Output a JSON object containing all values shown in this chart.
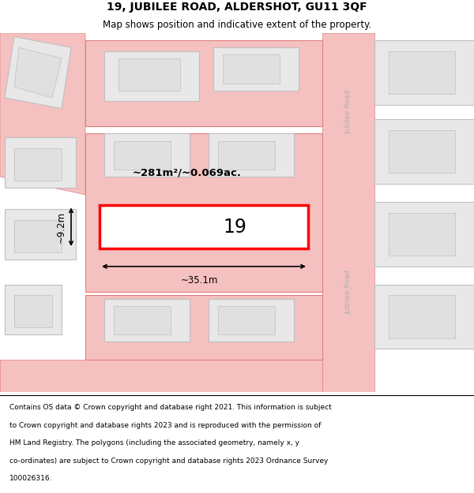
{
  "title": "19, JUBILEE ROAD, ALDERSHOT, GU11 3QF",
  "subtitle": "Map shows position and indicative extent of the property.",
  "footer_lines": [
    "Contains OS data © Crown copyright and database right 2021. This information is subject",
    "to Crown copyright and database rights 2023 and is reproduced with the permission of",
    "HM Land Registry. The polygons (including the associated geometry, namely x, y",
    "co-ordinates) are subject to Crown copyright and database rights 2023 Ordnance Survey",
    "100026316."
  ],
  "map_bg": "#ffffff",
  "header_bg": "#ffffff",
  "footer_bg": "#ffffff",
  "road_color": "#f5c0c0",
  "road_edge_color": "#e08080",
  "building_fill": "#e8e8e8",
  "building_edge": "#c0c0c0",
  "highlight_fill": "#ffffff",
  "highlight_edge": "#ff0000",
  "highlight_edge_width": 2.5,
  "road_label": "Jubilee Road",
  "property_label": "19",
  "area_label": "~281m²/~0.069ac.",
  "width_label": "~35.1m",
  "height_label": "~9.2m"
}
